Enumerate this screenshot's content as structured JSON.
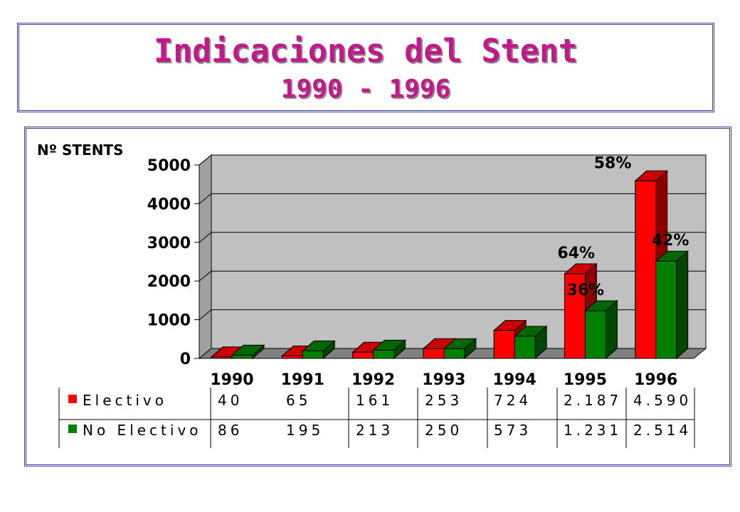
{
  "title": "Indicaciones del Stent",
  "subtitle": "1990 - 1996",
  "colors": {
    "title": "#c0198a",
    "electivo": "#ff0000",
    "no_electivo": "#008000",
    "plot_bg": "#c0c0c0",
    "border": "#3b3b9a"
  },
  "chart_data": {
    "type": "bar",
    "ylabel": "Nº STENTS",
    "categories": [
      "1990",
      "1991",
      "1992",
      "1993",
      "1994",
      "1995",
      "1996"
    ],
    "ylim": [
      0,
      5000
    ],
    "yticks": [
      "5000",
      "4000",
      "3000",
      "2000",
      "1000",
      "0"
    ],
    "grid": true,
    "series": [
      {
        "name": "Electivo",
        "values": [
          40,
          65,
          161,
          253,
          724,
          2187,
          4590
        ]
      },
      {
        "name": "No Electivo",
        "values": [
          86,
          195,
          213,
          250,
          573,
          1231,
          2514
        ]
      }
    ],
    "annotations": [
      "64%",
      "36%",
      "58%",
      "42%"
    ],
    "table": {
      "rows": [
        {
          "label": "Electivo",
          "cells": [
            "40",
            "65",
            "161",
            "253",
            "724",
            "2.187",
            "4.590"
          ]
        },
        {
          "label": "No Electivo",
          "cells": [
            "86",
            "195",
            "213",
            "250",
            "573",
            "1.231",
            "2.514"
          ]
        }
      ]
    }
  }
}
